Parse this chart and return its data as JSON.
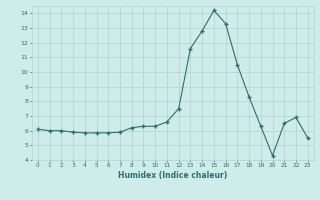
{
  "x": [
    0,
    1,
    2,
    3,
    4,
    5,
    6,
    7,
    8,
    9,
    10,
    11,
    12,
    13,
    14,
    15,
    16,
    17,
    18,
    19,
    20,
    21,
    22,
    23
  ],
  "y": [
    6.1,
    6.0,
    6.0,
    5.9,
    5.85,
    5.85,
    5.85,
    5.9,
    6.2,
    6.3,
    6.3,
    6.6,
    7.5,
    11.6,
    12.8,
    14.2,
    13.3,
    10.5,
    8.3,
    6.3,
    4.3,
    6.5,
    6.9,
    5.5
  ],
  "xlabel": "Humidex (Indice chaleur)",
  "ylim": [
    4,
    14.5
  ],
  "xlim": [
    -0.5,
    23.5
  ],
  "line_color": "#2d6e6e",
  "marker_color": "#2d6e6e",
  "bg_color": "#ceecea",
  "grid_color": "#b0d4d0",
  "tick_color": "#2d6e6e",
  "label_color": "#2d6e6e",
  "yticks": [
    4,
    5,
    6,
    7,
    8,
    9,
    10,
    11,
    12,
    13,
    14
  ],
  "xticks": [
    0,
    1,
    2,
    3,
    4,
    5,
    6,
    7,
    8,
    9,
    10,
    11,
    12,
    13,
    14,
    15,
    16,
    17,
    18,
    19,
    20,
    21,
    22,
    23
  ]
}
